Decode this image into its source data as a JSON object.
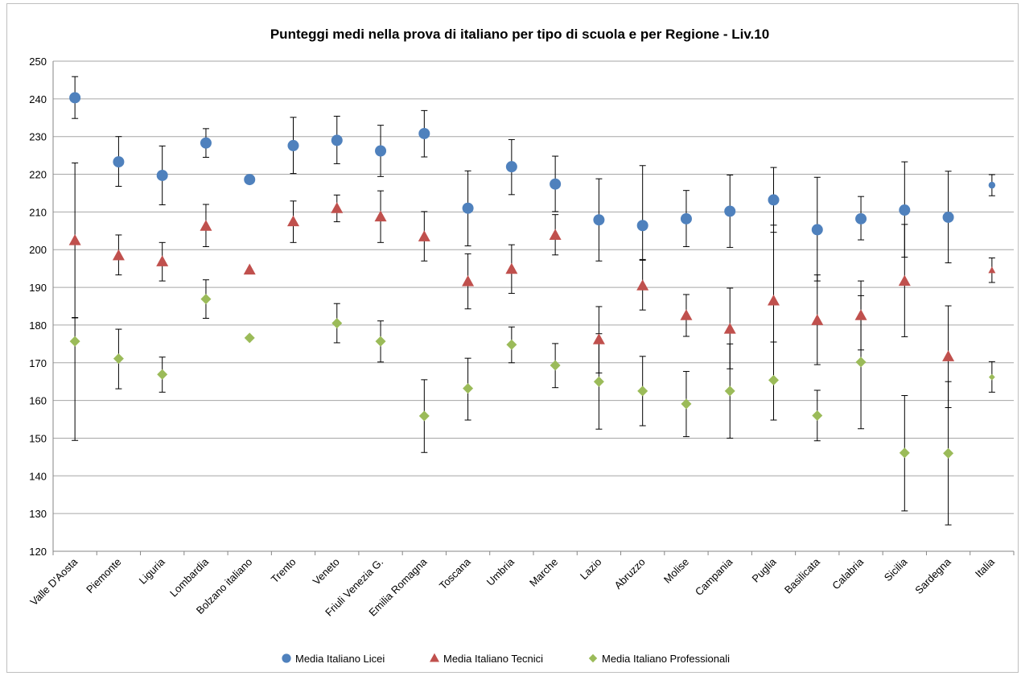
{
  "chart_data": {
    "type": "scatter",
    "title": "Punteggi medi nella prova di italiano per tipo di scuola e per Regione - Liv.10",
    "xlabel": "",
    "ylabel": "",
    "ylim": [
      120,
      250
    ],
    "ytick_step": 10,
    "grid": true,
    "legend_position": "bottom",
    "categories": [
      "Valle D'Aosta",
      "Piemonte",
      "Liguria",
      "Lombardia",
      "Bolzano italiano",
      "Trento",
      "Veneto",
      "Friuli Venezia G.",
      "Emilia Romagna",
      "Toscana",
      "Umbria",
      "Marche",
      "Lazio",
      "Abruzzo",
      "Molise",
      "Campania",
      "Puglia",
      "Basilicata",
      "Calabria",
      "Sicilia",
      "Sardegna",
      "Italia"
    ],
    "series": [
      {
        "name": "Media Italiano Licei",
        "marker": "circle",
        "color": "#4f81bd",
        "values": [
          240.3,
          223.3,
          219.7,
          228.3,
          218.6,
          227.6,
          229.0,
          226.2,
          230.8,
          211.0,
          222.0,
          217.4,
          207.9,
          206.4,
          208.2,
          210.2,
          213.2,
          205.3,
          208.2,
          210.5,
          208.6,
          217.1
        ],
        "err_low": [
          234.8,
          216.8,
          211.9,
          224.5,
          null,
          220.2,
          222.8,
          219.4,
          224.6,
          201.0,
          214.6,
          210.1,
          197.0,
          197.4,
          200.8,
          200.6,
          204.6,
          191.7,
          202.6,
          198.0,
          196.5,
          214.3
        ],
        "err_high": [
          245.9,
          230.0,
          227.5,
          232.1,
          null,
          235.1,
          235.4,
          233.0,
          236.9,
          220.9,
          229.2,
          224.8,
          218.8,
          222.3,
          215.7,
          219.8,
          221.8,
          219.2,
          214.1,
          223.3,
          220.8,
          219.9
        ]
      },
      {
        "name": "Media Italiano Tecnici",
        "marker": "triangle",
        "color": "#c0504d",
        "values": [
          202.4,
          198.4,
          196.8,
          206.2,
          194.6,
          207.4,
          210.9,
          208.7,
          203.4,
          191.5,
          194.8,
          203.8,
          176.1,
          190.4,
          182.5,
          178.9,
          186.4,
          181.2,
          182.5,
          191.6,
          171.6,
          194.5
        ],
        "err_low": [
          181.9,
          193.3,
          191.7,
          200.8,
          null,
          201.9,
          207.4,
          201.9,
          197.0,
          184.3,
          188.4,
          198.6,
          167.3,
          184.0,
          177.0,
          168.4,
          175.5,
          169.5,
          173.4,
          176.9,
          158.1,
          191.3
        ],
        "err_high": [
          223.0,
          203.9,
          201.9,
          212.0,
          null,
          212.9,
          214.5,
          215.6,
          210.1,
          198.9,
          201.3,
          209.3,
          184.9,
          197.2,
          188.1,
          189.8,
          206.5,
          193.3,
          191.7,
          206.7,
          185.1,
          197.8
        ]
      },
      {
        "name": "Media Italiano Professionali",
        "marker": "diamond",
        "color": "#9bbb59",
        "values": [
          175.7,
          171.1,
          166.9,
          186.9,
          176.6,
          null,
          180.5,
          175.7,
          155.9,
          163.2,
          174.8,
          169.3,
          165.0,
          162.5,
          159.1,
          162.5,
          165.4,
          156.0,
          170.2,
          146.1,
          146.0,
          166.2
        ],
        "err_low": [
          149.4,
          163.1,
          162.2,
          181.8,
          null,
          null,
          175.3,
          170.2,
          146.2,
          154.8,
          170.0,
          163.4,
          152.4,
          153.3,
          150.4,
          150.0,
          154.8,
          149.3,
          152.5,
          130.7,
          127.0,
          162.2
        ],
        "err_high": [
          182.0,
          178.9,
          171.5,
          192.0,
          null,
          null,
          185.7,
          181.1,
          165.5,
          171.2,
          179.5,
          175.1,
          177.7,
          171.7,
          167.7,
          175.0,
          175.5,
          162.7,
          187.8,
          161.3,
          165.0,
          170.3
        ]
      }
    ]
  }
}
